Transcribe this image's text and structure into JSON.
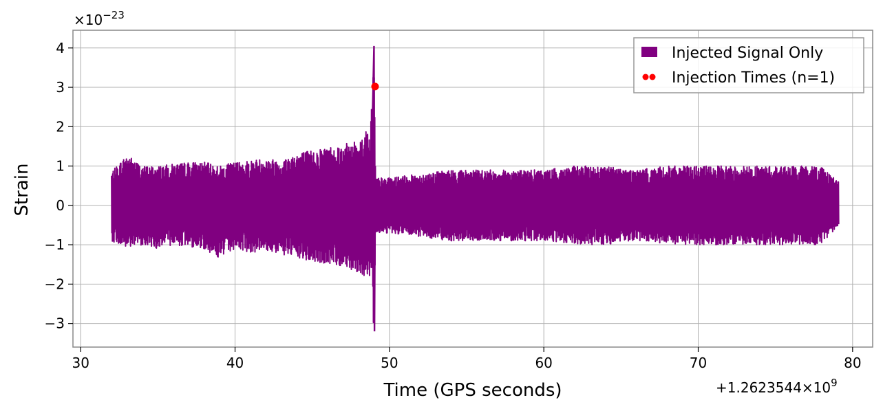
{
  "chart_data": {
    "type": "line",
    "xlabel": "Time (GPS seconds)",
    "ylabel": "Strain",
    "x_offset_label": "+1.2623544×10",
    "x_offset_exp": "9",
    "y_multiplier_label": "×10",
    "y_multiplier_exp": "−23",
    "xlim": [
      29.5,
      81.3
    ],
    "ylim": [
      -3.6,
      4.45
    ],
    "xticks": [
      30,
      40,
      50,
      60,
      70,
      80
    ],
    "xtick_labels": [
      "30",
      "40",
      "50",
      "60",
      "70",
      "80"
    ],
    "yticks": [
      -3,
      -2,
      -1,
      0,
      1,
      2,
      3,
      4
    ],
    "ytick_labels": [
      "−3",
      "−2",
      "−1",
      "0",
      "1",
      "2",
      "3",
      "4"
    ],
    "grid": true,
    "legend_position": "top-right",
    "series": [
      {
        "name": "Injected Signal Only",
        "color": "#800080",
        "x_range": [
          32.0,
          79.1
        ],
        "envelope_x": [
          32,
          33,
          34,
          35,
          36,
          37,
          38,
          39,
          40,
          41,
          42,
          43,
          44,
          45,
          46,
          47,
          48,
          48.5,
          48.8,
          49.0,
          49.1,
          49.2,
          50,
          52,
          54,
          56,
          58,
          60,
          62,
          64,
          66,
          68,
          70,
          72,
          74,
          76,
          78,
          79.1
        ],
        "envelope_upper": [
          0.85,
          1.3,
          1.0,
          1.0,
          1.05,
          1.1,
          1.1,
          1.0,
          1.1,
          1.15,
          1.2,
          1.15,
          1.35,
          1.4,
          1.5,
          1.55,
          1.65,
          1.9,
          2.2,
          4.05,
          0.7,
          0.7,
          0.7,
          0.8,
          0.9,
          0.9,
          0.9,
          0.9,
          1.0,
          1.0,
          0.9,
          1.0,
          1.0,
          1.0,
          1.0,
          1.0,
          1.0,
          0.6
        ],
        "envelope_lower": [
          -0.9,
          -1.1,
          -1.0,
          -1.1,
          -1.0,
          -1.05,
          -1.1,
          -1.35,
          -1.1,
          -1.2,
          -1.15,
          -1.25,
          -1.35,
          -1.45,
          -1.5,
          -1.55,
          -1.7,
          -1.9,
          -2.1,
          -3.2,
          -0.7,
          -0.7,
          -0.7,
          -0.8,
          -0.9,
          -0.9,
          -0.9,
          -0.9,
          -1.0,
          -1.0,
          -0.9,
          -1.0,
          -1.0,
          -1.0,
          -1.0,
          -1.0,
          -1.0,
          -0.5
        ]
      },
      {
        "name": "Injection Times (n=1)",
        "type": "scatter",
        "color": "#ff0000",
        "x": [
          49.07
        ],
        "y": [
          3.02
        ]
      }
    ]
  }
}
